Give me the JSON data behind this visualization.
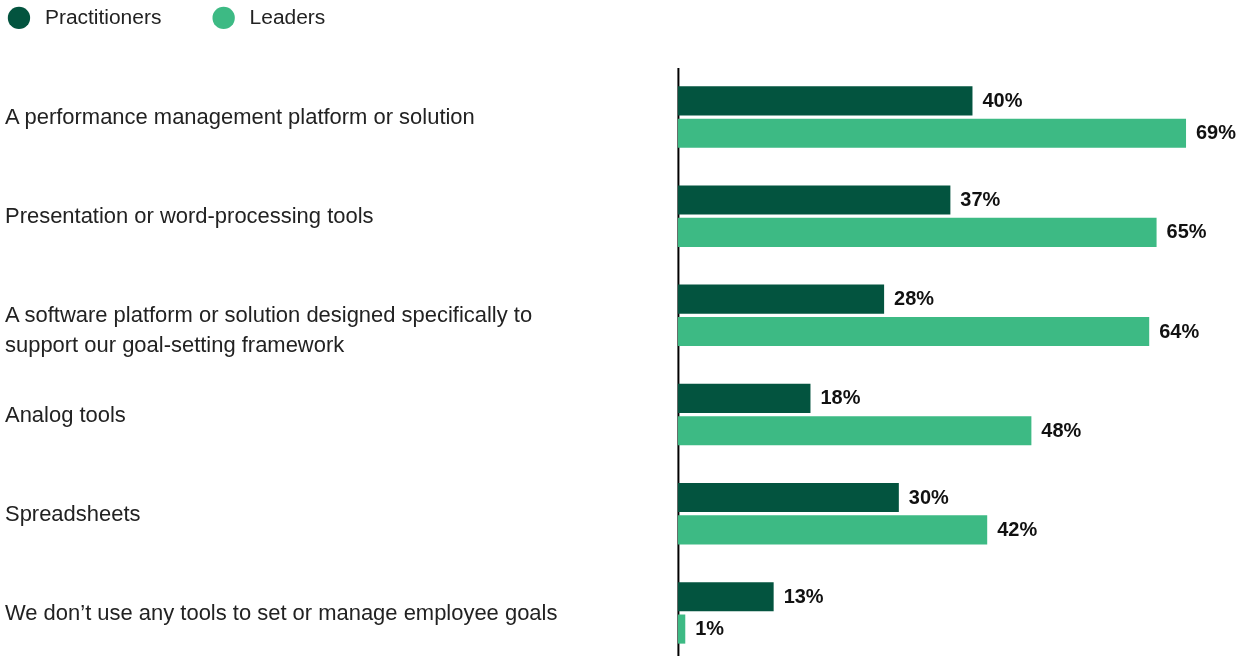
{
  "chart_data": {
    "type": "bar",
    "orientation": "horizontal",
    "categories": [
      "A performance management platform or solution",
      "Presentation or word-processing tools",
      "A software platform or solution designed specifically to support our goal-setting framework",
      "Analog tools",
      "Spreadsheets",
      "We don’t use any tools to set or manage employee goals"
    ],
    "series": [
      {
        "name": "Practitioners",
        "color": "#03543f",
        "values": [
          40,
          37,
          28,
          18,
          30,
          13
        ],
        "value_labels": [
          "40%",
          "37%",
          "28%",
          "18%",
          "30%",
          "13%"
        ]
      },
      {
        "name": "Leaders",
        "color": "#3dba84",
        "values": [
          69,
          65,
          64,
          48,
          42,
          1
        ],
        "value_labels": [
          "69%",
          "65%",
          "64%",
          "48%",
          "42%",
          "1%"
        ]
      }
    ],
    "legend": "top left",
    "grid": false
  }
}
